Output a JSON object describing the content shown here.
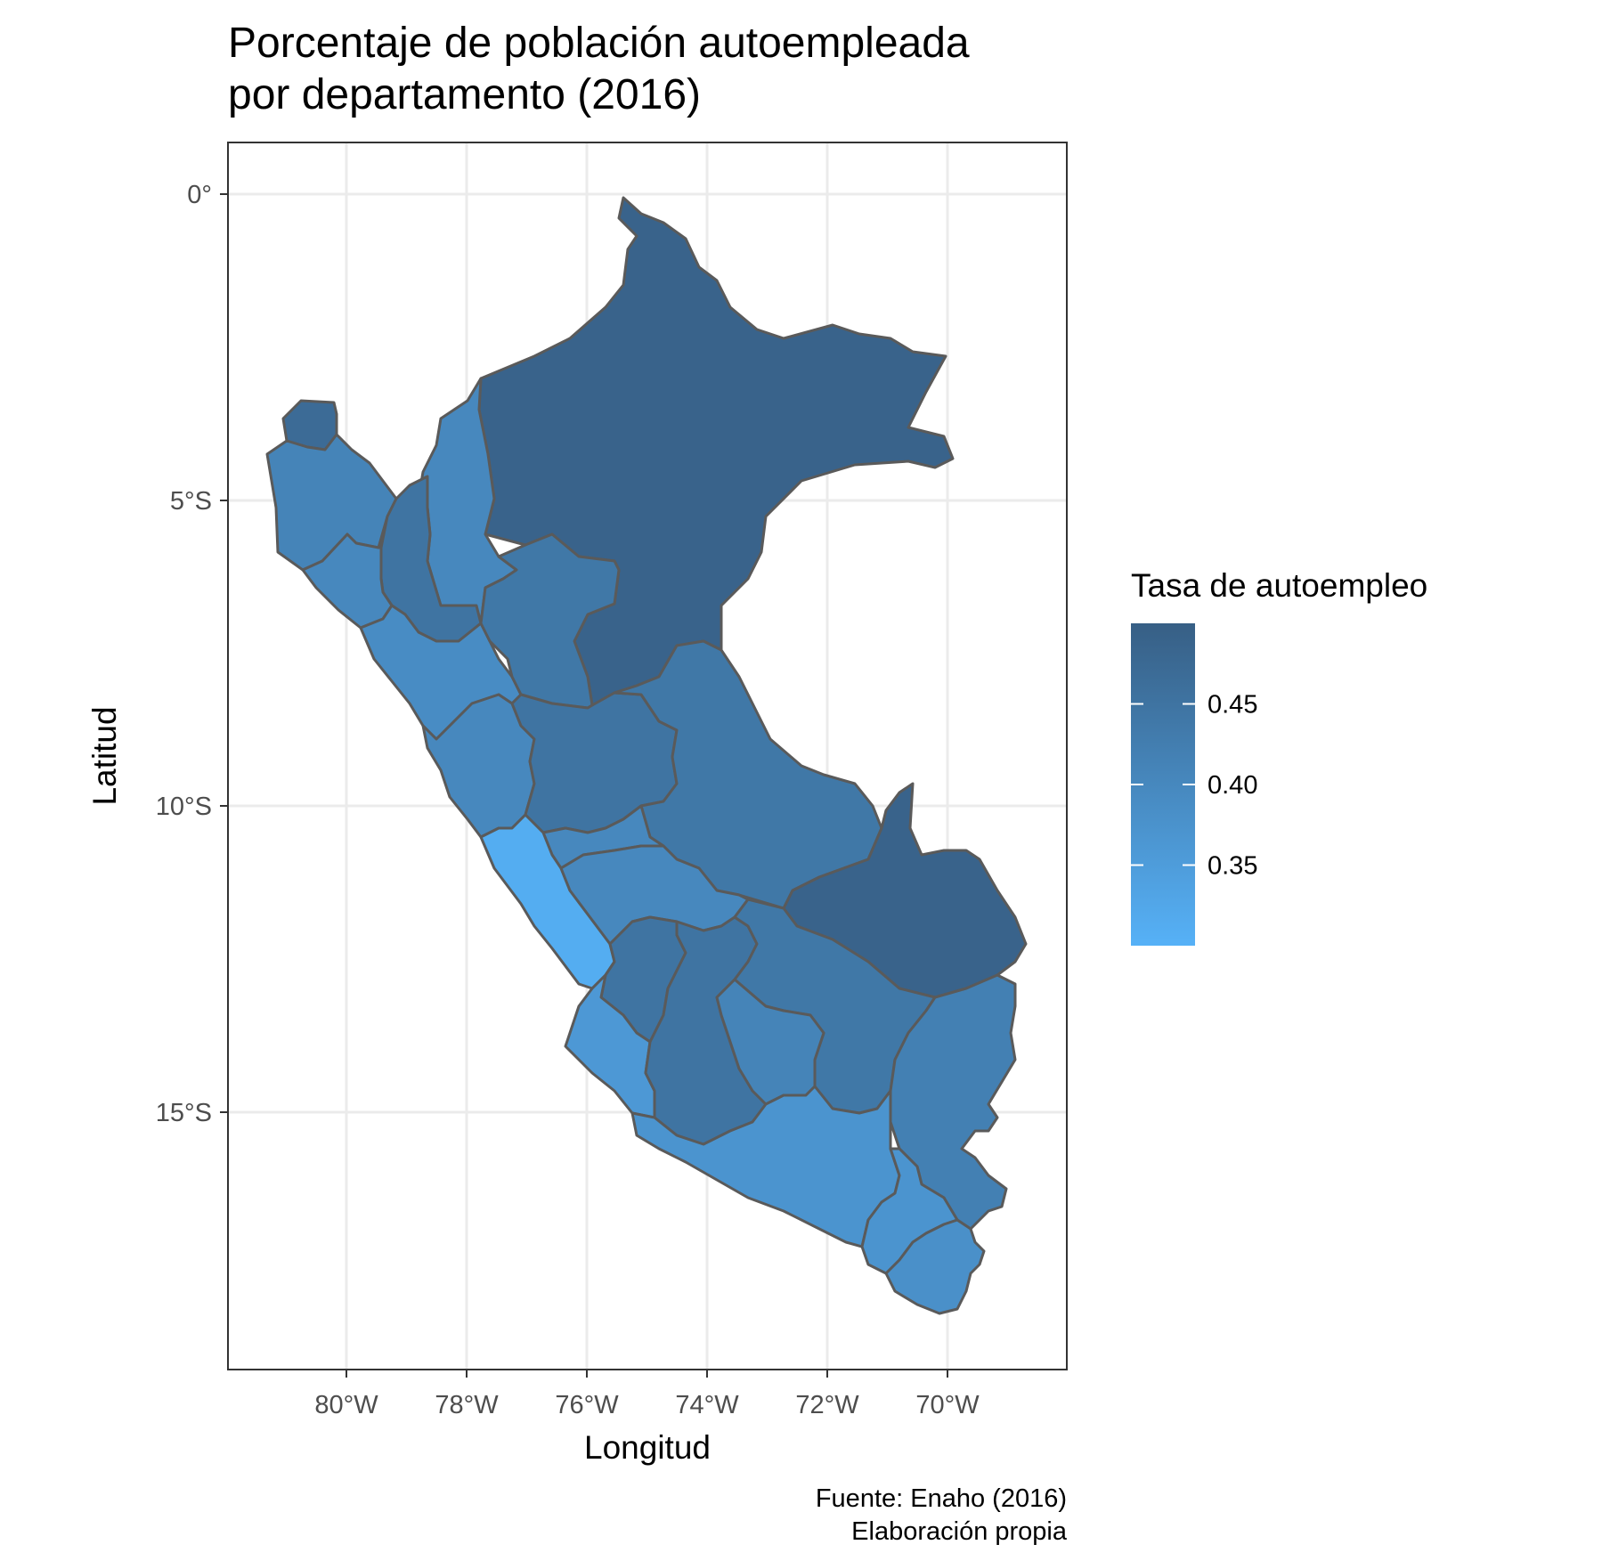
{
  "title_line1": "Porcentaje de población autoempleada",
  "title_line2": "por departamento (2016)",
  "x_axis_title": "Longitud",
  "y_axis_title": "Latitud",
  "caption_line1": "Fuente: Enaho (2016)",
  "caption_line2": "Elaboración propia",
  "chart_data": {
    "type": "choropleth",
    "xlabel": "Longitud",
    "ylabel": "Latitud",
    "x_ticks": [
      "80°W",
      "78°W",
      "76°W",
      "74°W",
      "72°W",
      "70°W"
    ],
    "y_ticks": [
      "0°",
      "5°S",
      "10°S",
      "15°S"
    ],
    "grid": true,
    "legend": {
      "title": "Tasa de autoempleo",
      "placement": "right",
      "low_color": "#56B1F7",
      "high_color": "#375f85",
      "range": [
        0.3,
        0.5
      ],
      "ticks": [
        0.35,
        0.4,
        0.45
      ],
      "tick_labels": [
        "0.35",
        "0.40",
        "0.45"
      ]
    },
    "regions": [
      {
        "id": "loreto",
        "value": 0.49
      },
      {
        "id": "amazonas",
        "value": 0.4
      },
      {
        "id": "tumbes",
        "value": 0.47
      },
      {
        "id": "piura",
        "value": 0.41
      },
      {
        "id": "cajamarca",
        "value": 0.45
      },
      {
        "id": "lambayeque",
        "value": 0.4
      },
      {
        "id": "la-libertad",
        "value": 0.39
      },
      {
        "id": "san-martin",
        "value": 0.44
      },
      {
        "id": "ancash",
        "value": 0.4
      },
      {
        "id": "huanuco",
        "value": 0.45
      },
      {
        "id": "ucayali",
        "value": 0.44
      },
      {
        "id": "pasco",
        "value": 0.4
      },
      {
        "id": "lima",
        "value": 0.31
      },
      {
        "id": "junin",
        "value": 0.4
      },
      {
        "id": "madre-de-dios",
        "value": 0.49
      },
      {
        "id": "huancavelica",
        "value": 0.45
      },
      {
        "id": "ica",
        "value": 0.36
      },
      {
        "id": "ayacucho",
        "value": 0.45
      },
      {
        "id": "cusco",
        "value": 0.44
      },
      {
        "id": "apurimac",
        "value": 0.41
      },
      {
        "id": "puno",
        "value": 0.42
      },
      {
        "id": "arequipa",
        "value": 0.37
      },
      {
        "id": "moquegua",
        "value": 0.37
      },
      {
        "id": "tacna",
        "value": 0.38
      }
    ]
  }
}
